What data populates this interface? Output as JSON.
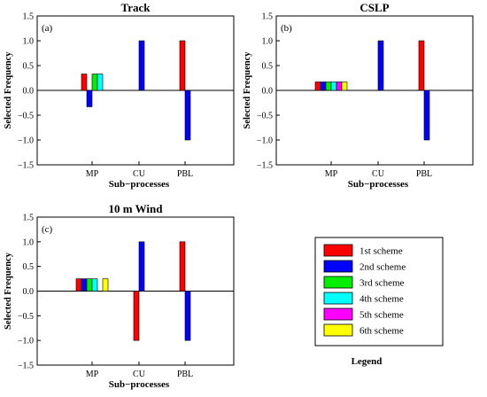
{
  "scheme_colors": [
    "#ff0000",
    "#0000ff",
    "#00ee00",
    "#00ffff",
    "#ff00ff",
    "#ffff00"
  ],
  "legend": {
    "title": "Legend",
    "entries": [
      "1st scheme",
      "2nd scheme",
      "3rd scheme",
      "4th scheme",
      "5th scheme",
      "6th scheme"
    ]
  },
  "chart_data": [
    {
      "type": "bar",
      "title": "Track",
      "panel_label": "(a)",
      "xlabel": "Sub−processes",
      "ylabel": "Selected Frequency",
      "categories": [
        "MP",
        "CU",
        "PBL"
      ],
      "ylim": [
        -1.5,
        1.5
      ],
      "yticks": [
        "1.5",
        "1.0",
        "0.5",
        "0.0",
        "−0.5",
        "−1.0",
        "−1.5"
      ],
      "bars": {
        "MP": [
          0.33,
          -0.33,
          0.33,
          0.33
        ],
        "CU": [
          0,
          1.0
        ],
        "PBL": [
          1.0,
          -1.0
        ]
      }
    },
    {
      "type": "bar",
      "title": "CSLP",
      "panel_label": "(b)",
      "xlabel": "Sub−processes",
      "ylabel": "Selected Frequency",
      "categories": [
        "MP",
        "CU",
        "PBL"
      ],
      "ylim": [
        -1.5,
        1.5
      ],
      "yticks": [
        "1.5",
        "1.0",
        "0.5",
        "0.0",
        "−0.5",
        "−1.0",
        "−1.5"
      ],
      "bars": {
        "MP": [
          0.17,
          0.17,
          0.17,
          0.17,
          0.17,
          0.17
        ],
        "CU": [
          0,
          1.0
        ],
        "PBL": [
          1.0,
          -1.0
        ]
      }
    },
    {
      "type": "bar",
      "title": "10 m Wind",
      "panel_label": "(c)",
      "xlabel": "Sub−processes",
      "ylabel": "Selected Frequency",
      "categories": [
        "MP",
        "CU",
        "PBL"
      ],
      "ylim": [
        -1.5,
        1.5
      ],
      "yticks": [
        "1.5",
        "1.0",
        "0.5",
        "0.0",
        "−0.5",
        "−1.0",
        "−1.5"
      ],
      "bars": {
        "MP": [
          0.25,
          0.25,
          0.25,
          0.25,
          0,
          0.25
        ],
        "CU": [
          -1.0,
          1.0
        ],
        "PBL": [
          1.0,
          -1.0
        ]
      }
    }
  ]
}
